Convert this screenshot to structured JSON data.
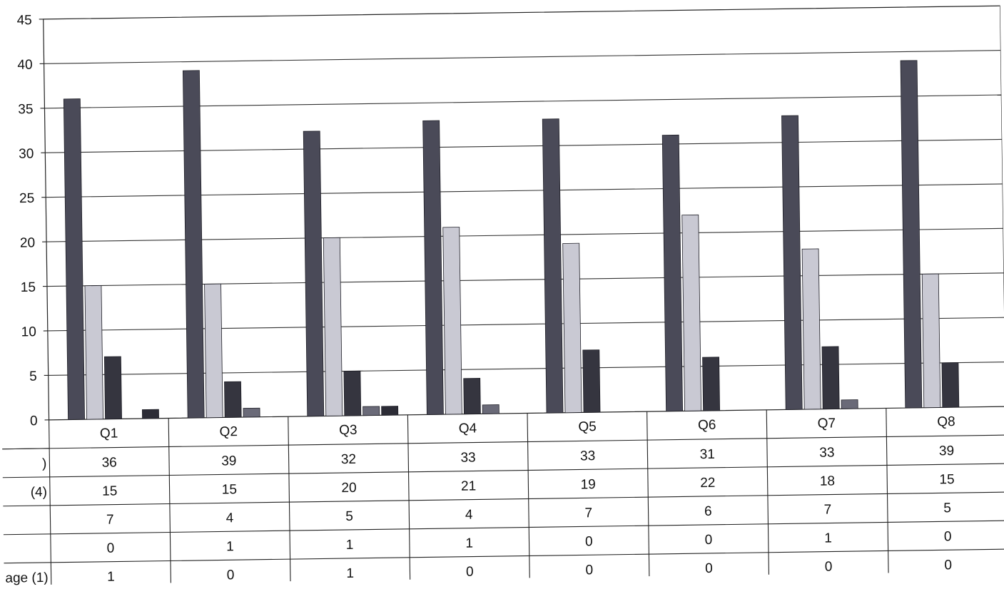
{
  "chart_data": {
    "type": "bar",
    "categories": [
      "Q1",
      "Q2",
      "Q3",
      "Q4",
      "Q5",
      "Q6",
      "Q7",
      "Q8"
    ],
    "series": [
      {
        "name": ")",
        "values": [
          36,
          39,
          32,
          33,
          33,
          31,
          33,
          39
        ],
        "color": "#4a4a58"
      },
      {
        "name": "(4)",
        "values": [
          15,
          15,
          20,
          21,
          19,
          22,
          18,
          15
        ],
        "color": "#c9c9d3"
      },
      {
        "name": "",
        "values": [
          7,
          4,
          5,
          4,
          7,
          6,
          7,
          5
        ],
        "color": "#35353f"
      },
      {
        "name": "",
        "values": [
          0,
          1,
          1,
          1,
          0,
          0,
          1,
          0
        ],
        "color": "#6a6a78"
      },
      {
        "name": "age (1)",
        "values": [
          1,
          0,
          1,
          0,
          0,
          0,
          0,
          0
        ],
        "color": "#2c2c36"
      }
    ],
    "yticks": [
      0,
      5,
      10,
      15,
      20,
      25,
      30,
      35,
      40,
      45
    ],
    "ylim": [
      0,
      45
    ],
    "grid": true,
    "data_table": true,
    "legend": "none",
    "title": "",
    "xlabel": "",
    "ylabel": ""
  }
}
